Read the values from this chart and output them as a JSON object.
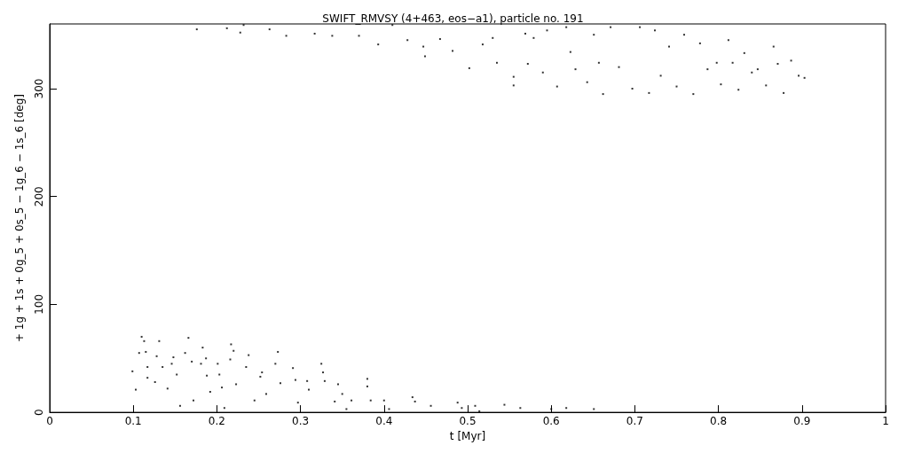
{
  "chart_data": {
    "type": "scatter",
    "title": "SWIFT_RMVSY (4+463, eos−a1), particle no. 191",
    "xlabel": "t [Myr]",
    "ylabel": "+ 1g + 1s + 0g_5 + 0s_5 − 1g_6 − 1s_6 [deg]",
    "xlim": [
      0,
      1
    ],
    "xticks": [
      0,
      0.1,
      0.2,
      0.3,
      0.4,
      0.5,
      0.6,
      0.7,
      0.8,
      0.9,
      1
    ],
    "ylim": [
      0,
      360
    ],
    "yticks": [
      0,
      100,
      200,
      300
    ],
    "grid": false,
    "marker": "square",
    "series": [
      {
        "color": "#000000",
        "x": [
          0.11,
          0.113,
          0.107,
          0.099,
          0.103,
          0.115,
          0.117,
          0.117,
          0.126,
          0.131,
          0.128,
          0.135,
          0.141,
          0.148,
          0.146,
          0.152,
          0.156,
          0.166,
          0.162,
          0.17,
          0.172,
          0.183,
          0.187,
          0.181,
          0.188,
          0.192,
          0.201,
          0.203,
          0.206,
          0.209,
          0.217,
          0.22,
          0.216,
          0.223,
          0.238,
          0.235,
          0.245,
          0.254,
          0.252,
          0.259,
          0.273,
          0.27,
          0.276,
          0.291,
          0.294,
          0.297,
          0.308,
          0.31,
          0.325,
          0.327,
          0.329,
          0.341,
          0.345,
          0.35,
          0.355,
          0.361,
          0.38,
          0.38,
          0.384,
          0.4,
          0.406,
          0.434,
          0.437,
          0.456,
          0.488,
          0.493,
          0.509,
          0.514,
          0.544,
          0.563,
          0.6,
          0.618,
          0.651
        ],
        "values": [
          70,
          66,
          55,
          38,
          21,
          56,
          42,
          32,
          28,
          66,
          52,
          42,
          22,
          51,
          45,
          35,
          6,
          69,
          55,
          47,
          11,
          60,
          50,
          45,
          34,
          19,
          45,
          35,
          23,
          4,
          63,
          57,
          49,
          26,
          53,
          42,
          11,
          37,
          33,
          17,
          56,
          45,
          27,
          41,
          30,
          9,
          29,
          21,
          45,
          37,
          29,
          10,
          26,
          17,
          3,
          11,
          31,
          24,
          11,
          11,
          3,
          14,
          10,
          6,
          9,
          4,
          6,
          1,
          7,
          4,
          3,
          4,
          3
        ]
      },
      {
        "color": "#000000",
        "x": [
          0.176,
          0.212,
          0.228,
          0.232,
          0.263,
          0.283,
          0.317,
          0.338,
          0.37,
          0.393,
          0.41,
          0.428,
          0.447,
          0.449,
          0.467,
          0.482,
          0.502,
          0.518,
          0.53,
          0.535,
          0.555,
          0.555,
          0.569,
          0.579,
          0.572,
          0.59,
          0.607,
          0.595,
          0.618,
          0.623,
          0.629,
          0.643,
          0.651,
          0.657,
          0.662,
          0.671,
          0.681,
          0.697,
          0.706,
          0.717,
          0.724,
          0.731,
          0.741,
          0.75,
          0.759,
          0.77,
          0.778,
          0.787,
          0.798,
          0.803,
          0.812,
          0.817,
          0.824,
          0.831,
          0.84,
          0.847,
          0.857,
          0.866,
          0.871,
          0.878,
          0.887,
          0.896,
          0.903
        ],
        "values": [
          355,
          356,
          352,
          359,
          355,
          349,
          351,
          349,
          349,
          341,
          359,
          345,
          339,
          330,
          346,
          335,
          319,
          341,
          347,
          324,
          303,
          311,
          351,
          347,
          323,
          315,
          302,
          354,
          357,
          334,
          318,
          306,
          350,
          324,
          295,
          357,
          320,
          300,
          357,
          296,
          354,
          312,
          339,
          302,
          350,
          295,
          342,
          318,
          324,
          304,
          345,
          324,
          299,
          333,
          315,
          318,
          303,
          339,
          323,
          296,
          326,
          312,
          310
        ]
      }
    ]
  }
}
